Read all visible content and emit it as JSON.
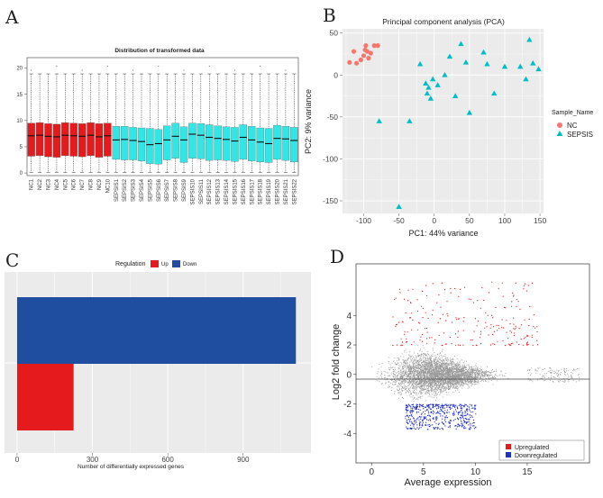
{
  "panel_labels": {
    "A": "A",
    "B": "B",
    "C": "C",
    "D": "D"
  },
  "colors": {
    "nc": "#e41a1c",
    "sepsis": "#33e6e6",
    "pca_nc": "#f8766d",
    "pca_sepsis": "#00bfc4",
    "up": "#e41a1c",
    "down": "#1f4ea0",
    "grey": "#9a9a9a"
  },
  "chart_data": [
    {
      "type": "box",
      "title": "Distribution of transformed data",
      "categories": [
        "NC1",
        "NC2",
        "NC3",
        "NC4",
        "NC5",
        "NC6",
        "NC7",
        "NC8",
        "NC9",
        "NC10",
        "SEPSIS1",
        "SEPSIS2",
        "SEPSIS3",
        "SEPSIS4",
        "SEPSIS5",
        "SEPSIS6",
        "SEPSIS7",
        "SEPSIS8",
        "SEPSIS9",
        "SEPSIS10",
        "SEPSIS11",
        "SEPSIS12",
        "SEPSIS13",
        "SEPSIS14",
        "SEPSIS15",
        "SEPSIS16",
        "SEPSIS17",
        "SEPSIS18",
        "SEPSIS19",
        "SEPSIS20",
        "SEPSIS21",
        "SEPSIS22"
      ],
      "groups": [
        "NC",
        "NC",
        "NC",
        "NC",
        "NC",
        "NC",
        "NC",
        "NC",
        "NC",
        "NC",
        "SEPSIS",
        "SEPSIS",
        "SEPSIS",
        "SEPSIS",
        "SEPSIS",
        "SEPSIS",
        "SEPSIS",
        "SEPSIS",
        "SEPSIS",
        "SEPSIS",
        "SEPSIS",
        "SEPSIS",
        "SEPSIS",
        "SEPSIS",
        "SEPSIS",
        "SEPSIS",
        "SEPSIS",
        "SEPSIS",
        "SEPSIS",
        "SEPSIS",
        "SEPSIS",
        "SEPSIS"
      ],
      "q1": [
        3.2,
        3.3,
        3.1,
        3.0,
        3.3,
        3.2,
        3.1,
        3.3,
        3.0,
        3.2,
        2.6,
        2.5,
        2.5,
        2.3,
        1.8,
        1.7,
        2.5,
        2.8,
        2.0,
        2.8,
        2.7,
        2.4,
        2.5,
        2.4,
        2.2,
        2.6,
        2.3,
        2.1,
        2.0,
        2.6,
        2.4,
        2.1
      ],
      "median": [
        7.1,
        7.2,
        7.0,
        6.9,
        7.2,
        7.1,
        7.0,
        7.2,
        6.9,
        7.1,
        6.3,
        6.4,
        6.2,
        6.0,
        5.4,
        5.6,
        6.3,
        7.0,
        6.3,
        7.4,
        7.2,
        6.8,
        6.6,
        6.4,
        6.1,
        6.8,
        6.3,
        5.9,
        5.6,
        6.6,
        6.5,
        6.2
      ],
      "q3": [
        9.5,
        9.6,
        9.4,
        9.3,
        9.6,
        9.5,
        9.4,
        9.6,
        9.4,
        9.5,
        8.9,
        8.9,
        8.7,
        8.6,
        8.5,
        8.3,
        9.0,
        9.5,
        8.8,
        9.5,
        9.4,
        9.2,
        9.0,
        8.8,
        8.7,
        9.2,
        8.9,
        8.6,
        8.5,
        9.1,
        8.9,
        8.7
      ],
      "whisker_low": [
        0.1,
        0.1,
        0.1,
        0.1,
        0.1,
        0.1,
        0.1,
        0.1,
        0.1,
        0.1,
        0.1,
        0.1,
        0.1,
        0.1,
        0.1,
        0.1,
        0.1,
        0.1,
        0.1,
        0.1,
        0.1,
        0.1,
        0.1,
        0.1,
        0.1,
        0.1,
        0.1,
        0.1,
        0.1,
        0.1,
        0.1,
        0.1
      ],
      "whisker_high": [
        18.9,
        18.9,
        18.9,
        18.9,
        18.9,
        18.9,
        18.9,
        18.9,
        18.9,
        18.9,
        18.9,
        18.9,
        18.9,
        18.9,
        18.9,
        18.9,
        18.9,
        18.9,
        18.9,
        18.9,
        18.9,
        18.9,
        18.9,
        18.9,
        18.9,
        18.9,
        18.9,
        18.9,
        18.9,
        18.9,
        18.9,
        18.9
      ],
      "yticks": [
        0,
        5,
        10,
        15,
        20
      ],
      "ylim": [
        -0.5,
        22
      ]
    },
    {
      "type": "scatter",
      "title": "Principal component analysis (PCA)",
      "xlabel": "PC1: 44% variance",
      "ylabel": "PC2: 9% variance",
      "xticks": [
        -100,
        -50,
        0,
        50,
        100,
        150
      ],
      "yticks": [
        50,
        0,
        -50,
        -100,
        -150
      ],
      "xlim": [
        -130,
        155
      ],
      "ylim": [
        -165,
        55
      ],
      "legend_title": "Sample_Name",
      "series": [
        {
          "name": "NC",
          "x": [
            -120,
            -114,
            -110,
            -104,
            -100,
            -98,
            -95,
            -97,
            -93,
            -90,
            -85,
            -80
          ],
          "y": [
            15,
            28,
            14,
            18,
            23,
            30,
            28,
            35,
            20,
            26,
            35,
            35
          ]
        },
        {
          "name": "SEPSIS",
          "x": [
            -78,
            -50,
            -35,
            -20,
            -12,
            -10,
            -8,
            -5,
            -2,
            5,
            15,
            22,
            30,
            38,
            45,
            50,
            70,
            75,
            85,
            100,
            122,
            130,
            135,
            140,
            148
          ],
          "y": [
            -55,
            -157,
            -55,
            13,
            -10,
            -22,
            -15,
            -28,
            -5,
            -12,
            0,
            22,
            -25,
            37,
            15,
            -45,
            27,
            13,
            -22,
            10,
            10,
            -5,
            42,
            14,
            7
          ]
        }
      ]
    },
    {
      "type": "bar",
      "orientation": "horizontal",
      "xlabel": "Number of differentially expressed genes",
      "legend_title": "Regulation",
      "legend": [
        "Up",
        "Down"
      ],
      "series": [
        {
          "name": "Up",
          "values": [
            225
          ]
        },
        {
          "name": "Down",
          "values": [
            1110
          ]
        }
      ],
      "xticks": [
        0,
        300,
        600,
        900
      ],
      "xlim": [
        -50,
        1170
      ]
    },
    {
      "type": "scatter",
      "subtype": "MA plot",
      "xlabel": "Average expression",
      "ylabel": "Log2 fold change",
      "xticks": [
        0,
        5,
        10,
        15
      ],
      "yticks": [
        4,
        2,
        0,
        -2,
        -4
      ],
      "xlim": [
        -1.5,
        21
      ],
      "ylim": [
        -6,
        7.5
      ],
      "legend": [
        "Upregulated",
        "Downregulated"
      ],
      "notes": "Dense cloud of ~thousands of grey non-significant genes centred at log2FC 0; red upregulated genes mostly above +2 for expression 2-16; blue downregulated genes band around -2 to -3 for expression 3-10; horizontal reference line at 0."
    }
  ]
}
